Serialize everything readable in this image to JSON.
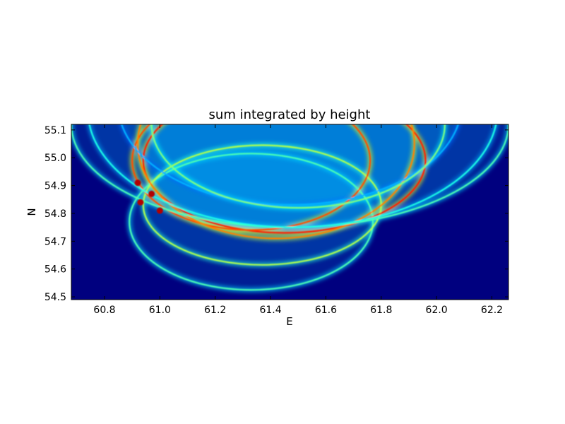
{
  "chart_data": {
    "type": "heatmap",
    "title": "sum integrated by height",
    "xlabel": "E",
    "ylabel": "N",
    "xlim": [
      60.68,
      62.26
    ],
    "ylim": [
      54.49,
      55.12
    ],
    "x_ticks": [
      60.8,
      61.0,
      61.2,
      61.4,
      61.6,
      61.8,
      62.0,
      62.2
    ],
    "x_tick_labels": [
      "60.8",
      "61.0",
      "61.2",
      "61.4",
      "61.6",
      "61.8",
      "62.0",
      "62.2"
    ],
    "y_ticks": [
      54.5,
      54.6,
      54.7,
      54.8,
      54.9,
      55.0,
      55.1
    ],
    "y_tick_labels": [
      "54.5",
      "54.6",
      "54.7",
      "54.8",
      "54.9",
      "55.0",
      "55.1"
    ],
    "colormap": "jet",
    "background_color": "#00007f",
    "grid": false,
    "rings": [
      {
        "cx": 61.33,
        "cy": 54.77,
        "rx": 0.44,
        "ry": 0.245,
        "intensity": 0.45
      },
      {
        "cx": 61.37,
        "cy": 54.83,
        "rx": 0.43,
        "ry": 0.215,
        "intensity": 0.55
      },
      {
        "cx": 61.45,
        "cy": 54.99,
        "rx": 0.51,
        "ry": 0.26,
        "intensity": 0.85
      },
      {
        "cx": 61.33,
        "cy": 54.99,
        "rx": 0.43,
        "ry": 0.25,
        "intensity": 0.8
      },
      {
        "cx": 61.42,
        "cy": 55.05,
        "rx": 0.5,
        "ry": 0.34,
        "intensity": 0.75
      },
      {
        "cx": 61.47,
        "cy": 55.12,
        "rx": 0.79,
        "ry": 0.37,
        "intensity": 0.45
      },
      {
        "cx": 61.48,
        "cy": 55.17,
        "rx": 0.74,
        "ry": 0.42,
        "intensity": 0.4
      },
      {
        "cx": 61.47,
        "cy": 55.19,
        "rx": 0.62,
        "ry": 0.36,
        "intensity": 0.3
      },
      {
        "cx": 61.5,
        "cy": 55.12,
        "rx": 0.53,
        "ry": 0.3,
        "intensity": 0.5
      }
    ],
    "hotspots": [
      {
        "x": 60.93,
        "y": 54.84
      },
      {
        "x": 60.92,
        "y": 54.91
      },
      {
        "x": 60.97,
        "y": 54.87
      },
      {
        "x": 61.0,
        "y": 54.81
      }
    ]
  }
}
